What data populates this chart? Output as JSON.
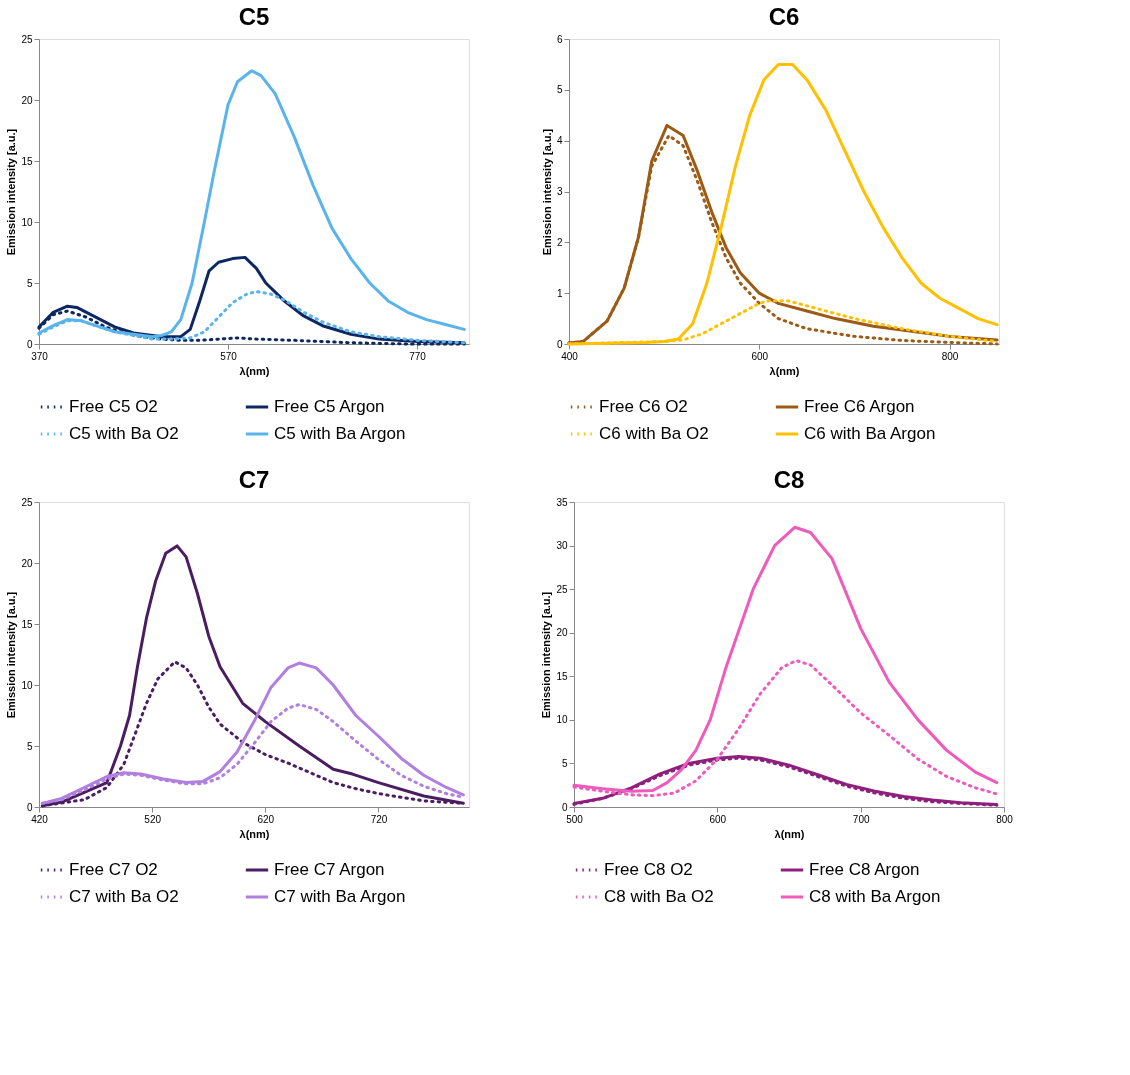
{
  "chart_data": [
    {
      "type": "line",
      "title": "C5",
      "xlabel": "λ(nm)",
      "ylabel": "Emission intensity [a.u.]",
      "xlim": [
        370,
        825
      ],
      "xticks": [
        370,
        570,
        770
      ],
      "ylim": [
        0,
        25
      ],
      "yticks": [
        0,
        5,
        10,
        15,
        20,
        25
      ],
      "legend": "bottom",
      "series": [
        {
          "name": "Free C5 O2",
          "color": "#0d2763",
          "line_style": "dotted",
          "x": [
            370,
            385,
            400,
            420,
            440,
            460,
            480,
            500,
            520,
            540,
            560,
            580,
            600,
            640,
            700,
            760,
            820
          ],
          "values": [
            1.3,
            2.4,
            2.7,
            2.2,
            1.4,
            0.9,
            0.6,
            0.4,
            0.3,
            0.3,
            0.4,
            0.5,
            0.4,
            0.3,
            0.1,
            0.0,
            0.0
          ]
        },
        {
          "name": "Free C5 Argon",
          "color": "#0d2763",
          "line_style": "solid",
          "x": [
            370,
            385,
            400,
            410,
            430,
            450,
            470,
            490,
            500,
            520,
            530,
            540,
            550,
            560,
            575,
            588,
            600,
            610,
            630,
            650,
            670,
            700,
            730,
            770,
            820
          ],
          "values": [
            1.4,
            2.6,
            3.1,
            3.0,
            2.2,
            1.4,
            0.9,
            0.7,
            0.6,
            0.6,
            1.2,
            3.5,
            6.0,
            6.7,
            7.0,
            7.1,
            6.2,
            5.0,
            3.5,
            2.3,
            1.5,
            0.8,
            0.4,
            0.2,
            0.1
          ]
        },
        {
          "name": "C5 with Ba O2",
          "color": "#5ab4ec",
          "line_style": "dotted",
          "x": [
            370,
            385,
            400,
            415,
            430,
            450,
            470,
            490,
            510,
            530,
            545,
            560,
            575,
            590,
            600,
            615,
            630,
            650,
            670,
            700,
            730,
            770,
            820
          ],
          "values": [
            0.8,
            1.4,
            1.9,
            1.9,
            1.5,
            1.0,
            0.7,
            0.4,
            0.4,
            0.5,
            1.0,
            2.2,
            3.4,
            4.1,
            4.3,
            4.1,
            3.6,
            2.6,
            1.8,
            1.0,
            0.6,
            0.3,
            0.1
          ]
        },
        {
          "name": "C5 with Ba Argon",
          "color": "#5ab4ec",
          "line_style": "solid",
          "x": [
            370,
            385,
            400,
            415,
            430,
            450,
            470,
            490,
            500,
            510,
            520,
            532,
            545,
            555,
            570,
            580,
            595,
            605,
            620,
            640,
            660,
            680,
            700,
            720,
            740,
            760,
            780,
            800,
            820
          ],
          "values": [
            0.9,
            1.5,
            2.0,
            1.9,
            1.5,
            1.0,
            0.8,
            0.6,
            0.7,
            1.0,
            2.0,
            5.0,
            10.0,
            14.0,
            19.6,
            21.5,
            22.4,
            22.0,
            20.5,
            17.0,
            13.0,
            9.5,
            7.0,
            5.0,
            3.5,
            2.6,
            2.0,
            1.6,
            1.2
          ]
        }
      ]
    },
    {
      "type": "line",
      "title": "C6",
      "xlabel": "λ(nm)",
      "ylabel": "Emission intensity [a.u.]",
      "xlim": [
        400,
        852
      ],
      "xticks": [
        400,
        600,
        800
      ],
      "ylim": [
        0,
        6
      ],
      "yticks": [
        0,
        1,
        2,
        3,
        4,
        5,
        6
      ],
      "legend": "bottom",
      "series": [
        {
          "name": "Free C6 O2",
          "color": "#9c5a14",
          "line_style": "dotted",
          "x": [
            400,
            415,
            440,
            458,
            473,
            487,
            505,
            520,
            535,
            550,
            565,
            580,
            600,
            620,
            650,
            700,
            750,
            800,
            850
          ],
          "values": [
            0.02,
            0.05,
            0.45,
            1.1,
            2.1,
            3.5,
            4.1,
            3.9,
            3.2,
            2.4,
            1.7,
            1.2,
            0.8,
            0.5,
            0.3,
            0.15,
            0.07,
            0.03,
            0.0
          ]
        },
        {
          "name": "Free C6 Argon",
          "color": "#9c5a14",
          "line_style": "solid",
          "x": [
            400,
            415,
            440,
            458,
            473,
            487,
            503,
            520,
            535,
            550,
            565,
            580,
            600,
            620,
            650,
            680,
            720,
            760,
            800,
            850
          ],
          "values": [
            0.02,
            0.05,
            0.45,
            1.1,
            2.1,
            3.6,
            4.3,
            4.1,
            3.4,
            2.6,
            1.9,
            1.4,
            1.0,
            0.8,
            0.65,
            0.5,
            0.35,
            0.25,
            0.15,
            0.08
          ]
        },
        {
          "name": "C6 with Ba O2",
          "color": "#ffc000",
          "line_style": "dotted",
          "x": [
            400,
            500,
            520,
            540,
            560,
            580,
            600,
            610,
            630,
            660,
            700,
            750,
            800,
            850
          ],
          "values": [
            0.0,
            0.05,
            0.08,
            0.2,
            0.4,
            0.6,
            0.8,
            0.85,
            0.85,
            0.7,
            0.5,
            0.3,
            0.15,
            0.05
          ]
        },
        {
          "name": "C6 with Ba Argon",
          "color": "#ffc000",
          "line_style": "solid",
          "x": [
            400,
            480,
            500,
            515,
            530,
            545,
            560,
            575,
            590,
            605,
            620,
            635,
            650,
            670,
            690,
            710,
            730,
            750,
            770,
            790,
            810,
            830,
            850
          ],
          "values": [
            0.0,
            0.03,
            0.05,
            0.1,
            0.4,
            1.2,
            2.3,
            3.5,
            4.5,
            5.2,
            5.5,
            5.5,
            5.2,
            4.6,
            3.8,
            3.0,
            2.3,
            1.7,
            1.2,
            0.9,
            0.7,
            0.5,
            0.38
          ]
        }
      ]
    },
    {
      "type": "line",
      "title": "C7",
      "xlabel": "λ(nm)",
      "ylabel": "Emission intensity [a.u.]",
      "xlim": [
        420,
        800
      ],
      "xticks": [
        420,
        520,
        620,
        720
      ],
      "ylim": [
        0,
        25
      ],
      "yticks": [
        0,
        5,
        10,
        15,
        20,
        25
      ],
      "legend": "bottom",
      "series": [
        {
          "name": "Free C7 O2",
          "color": "#4a1d62",
          "line_style": "dotted",
          "x": [
            423,
            460,
            480,
            495,
            505,
            515,
            525,
            540,
            550,
            560,
            570,
            580,
            600,
            620,
            640,
            660,
            680,
            700,
            720,
            740,
            760,
            795
          ],
          "values": [
            0.1,
            0.6,
            1.6,
            3.5,
            6.0,
            8.5,
            10.5,
            11.9,
            11.4,
            10.0,
            8.2,
            6.8,
            5.3,
            4.3,
            3.6,
            2.8,
            2.0,
            1.5,
            1.1,
            0.8,
            0.5,
            0.3
          ]
        },
        {
          "name": "Free C7 Argon",
          "color": "#4a1d62",
          "line_style": "solid",
          "x": [
            423,
            440,
            460,
            480,
            492,
            500,
            507,
            515,
            523,
            532,
            542,
            550,
            560,
            570,
            580,
            600,
            620,
            650,
            680,
            697,
            720,
            760,
            795
          ],
          "values": [
            0.1,
            0.4,
            1.2,
            2.0,
            5.0,
            7.5,
            11.5,
            15.5,
            18.5,
            20.8,
            21.4,
            20.5,
            17.5,
            14.0,
            11.5,
            8.5,
            7.0,
            5.0,
            3.1,
            2.7,
            2.0,
            0.9,
            0.3
          ]
        },
        {
          "name": "C7 with Ba O2",
          "color": "#b07fe0",
          "line_style": "dotted",
          "x": [
            423,
            440,
            460,
            480,
            495,
            510,
            530,
            550,
            565,
            580,
            595,
            610,
            625,
            640,
            650,
            665,
            680,
            700,
            720,
            740,
            760,
            780,
            795
          ],
          "values": [
            0.3,
            0.6,
            1.4,
            2.3,
            2.7,
            2.6,
            2.2,
            1.9,
            1.9,
            2.4,
            3.5,
            5.2,
            7.0,
            8.1,
            8.4,
            8.0,
            7.0,
            5.4,
            3.9,
            2.6,
            1.7,
            1.1,
            0.8
          ]
        },
        {
          "name": "C7 with Ba Argon",
          "color": "#b07fe0",
          "line_style": "solid",
          "x": [
            423,
            440,
            460,
            480,
            495,
            510,
            530,
            550,
            565,
            580,
            595,
            610,
            625,
            640,
            650,
            665,
            680,
            700,
            720,
            740,
            760,
            780,
            795
          ],
          "values": [
            0.3,
            0.7,
            1.6,
            2.5,
            2.8,
            2.7,
            2.3,
            2.0,
            2.1,
            2.9,
            4.5,
            7.0,
            9.8,
            11.4,
            11.8,
            11.4,
            10.0,
            7.5,
            5.8,
            4.0,
            2.6,
            1.6,
            1.0
          ]
        }
      ]
    },
    {
      "type": "line",
      "title": "C8",
      "xlabel": "λ(nm)",
      "ylabel": "Emission intensity [a.u.]",
      "xlim": [
        500,
        800
      ],
      "xticks": [
        500,
        600,
        700,
        800
      ],
      "ylim": [
        0,
        35
      ],
      "yticks": [
        0,
        5,
        10,
        15,
        20,
        25,
        30,
        35
      ],
      "legend": "bottom",
      "series": [
        {
          "name": "Free C8 O2",
          "color": "#8e1f7c",
          "line_style": "dotted",
          "x": [
            500,
            520,
            540,
            560,
            580,
            600,
            615,
            630,
            650,
            670,
            690,
            710,
            730,
            750,
            770,
            795
          ],
          "values": [
            0.3,
            1.0,
            2.1,
            3.6,
            4.8,
            5.4,
            5.6,
            5.4,
            4.6,
            3.5,
            2.4,
            1.6,
            1.0,
            0.6,
            0.4,
            0.2
          ]
        },
        {
          "name": "Free C8 Argon",
          "color": "#8e1f7c",
          "line_style": "solid",
          "x": [
            500,
            520,
            540,
            560,
            580,
            600,
            615,
            630,
            650,
            670,
            690,
            710,
            730,
            750,
            770,
            795
          ],
          "values": [
            0.4,
            1.0,
            2.2,
            3.8,
            5.0,
            5.6,
            5.8,
            5.6,
            4.8,
            3.7,
            2.6,
            1.8,
            1.2,
            0.8,
            0.5,
            0.3
          ]
        },
        {
          "name": "C8 with Ba O2",
          "color": "#ef5bbd",
          "line_style": "dotted",
          "x": [
            500,
            520,
            540,
            555,
            570,
            585,
            600,
            615,
            630,
            645,
            655,
            665,
            680,
            700,
            720,
            740,
            760,
            780,
            795
          ],
          "values": [
            2.3,
            1.8,
            1.4,
            1.3,
            1.6,
            3.0,
            5.5,
            9.0,
            13.0,
            16.0,
            16.8,
            16.3,
            14.0,
            10.8,
            8.2,
            5.5,
            3.5,
            2.2,
            1.5
          ]
        },
        {
          "name": "C8 with Ba Argon",
          "color": "#ef5bbd",
          "line_style": "solid",
          "x": [
            500,
            520,
            540,
            555,
            565,
            575,
            585,
            595,
            606,
            625,
            640,
            654,
            665,
            680,
            700,
            720,
            740,
            760,
            780,
            795
          ],
          "values": [
            2.5,
            2.1,
            1.8,
            1.9,
            2.8,
            4.3,
            6.5,
            10.0,
            16.0,
            25.0,
            30.0,
            32.1,
            31.5,
            28.5,
            20.5,
            14.3,
            10.0,
            6.5,
            4.0,
            2.8
          ]
        }
      ]
    }
  ]
}
